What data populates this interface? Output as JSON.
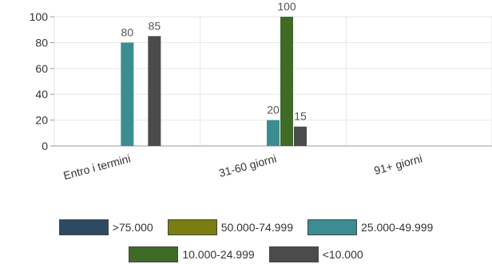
{
  "chart_data": {
    "type": "bar",
    "categories": [
      "Entro i termini",
      "31-60 giorni",
      "91+ giorni"
    ],
    "series": [
      {
        "name": ">75.000",
        "color": "#2e4a63",
        "values": [
          0,
          0,
          0
        ]
      },
      {
        "name": "50.000-74.999",
        "color": "#7a7d10",
        "values": [
          0,
          0,
          0
        ]
      },
      {
        "name": "25.000-49.999",
        "color": "#3b8d92",
        "values": [
          80,
          20,
          0
        ]
      },
      {
        "name": "10.000-24.999",
        "color": "#3f6b27",
        "values": [
          0,
          100,
          0
        ]
      },
      {
        "name": "<10.000",
        "color": "#4b4b4b",
        "values": [
          85,
          15,
          0
        ]
      }
    ],
    "ylim": [
      0,
      100
    ],
    "yticks": [
      "0",
      "20",
      "40",
      "60",
      "80",
      "100"
    ],
    "grid": true,
    "legend_position": "bottom"
  }
}
